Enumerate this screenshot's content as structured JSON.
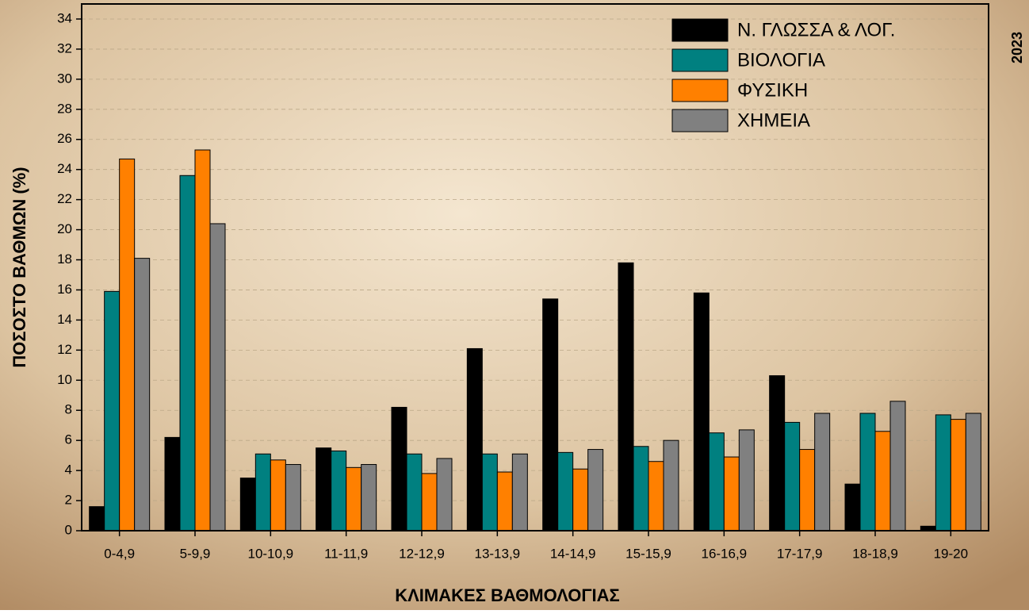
{
  "chart_data": {
    "type": "bar",
    "xlabel": "ΚΛΙΜΑΚΕΣ ΒΑΘΜΟΛΟΓΙΑΣ",
    "ylabel": "ΠΟΣΟΣΤΟ ΒΑΘΜΩΝ (%)",
    "annotation": "2023",
    "categories": [
      "0-4,9",
      "5-9,9",
      "10-10,9",
      "11-11,9",
      "12-12,9",
      "13-13,9",
      "14-14,9",
      "15-15,9",
      "16-16,9",
      "17-17,9",
      "18-18,9",
      "19-20"
    ],
    "series": [
      {
        "name": "Ν. ΓΛΩΣΣΑ & ΛΟΓ.",
        "color": "#000000",
        "values": [
          1.6,
          6.2,
          3.5,
          5.5,
          8.2,
          12.1,
          15.4,
          17.8,
          15.8,
          10.3,
          3.1,
          0.3
        ]
      },
      {
        "name": "ΒΙΟΛΟΓΙΑ",
        "color": "#008080",
        "values": [
          15.9,
          23.6,
          5.1,
          5.3,
          5.1,
          5.1,
          5.2,
          5.6,
          6.5,
          7.2,
          7.8,
          7.7
        ]
      },
      {
        "name": "ΦΥΣΙΚΗ",
        "color": "#ff8000",
        "values": [
          24.7,
          25.3,
          4.7,
          4.2,
          3.8,
          3.9,
          4.1,
          4.6,
          4.9,
          5.4,
          6.6,
          7.4
        ]
      },
      {
        "name": "ΧΗΜΕΙΑ",
        "color": "#808080",
        "values": [
          18.1,
          20.4,
          4.4,
          4.4,
          4.8,
          5.1,
          5.4,
          6.0,
          6.7,
          7.8,
          8.6,
          7.8
        ]
      }
    ],
    "ylim": [
      0,
      35
    ],
    "yticks": [
      0,
      2,
      4,
      6,
      8,
      10,
      12,
      14,
      16,
      18,
      20,
      22,
      24,
      26,
      28,
      30,
      32,
      34
    ],
    "grid": true,
    "legend": "top-right"
  }
}
